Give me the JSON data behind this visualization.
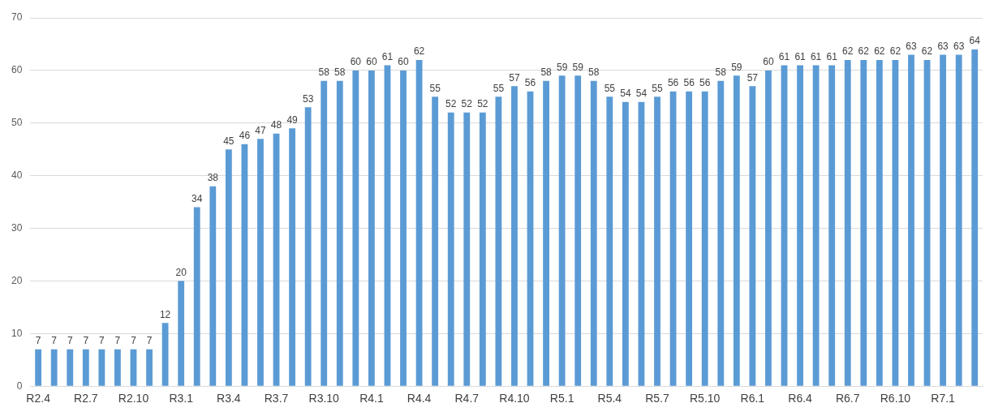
{
  "chart_data": {
    "type": "bar",
    "categories": [
      "R2.4",
      null,
      null,
      "R2.7",
      null,
      null,
      "R2.10",
      null,
      null,
      "R3.1",
      null,
      null,
      "R3.4",
      null,
      null,
      "R3.7",
      null,
      null,
      "R3.10",
      null,
      null,
      "R4.1",
      null,
      null,
      "R4.4",
      null,
      null,
      "R4.7",
      null,
      null,
      "R4.10",
      null,
      null,
      "R5.1",
      null,
      null,
      "R5.4",
      null,
      null,
      "R5.7",
      null,
      null,
      "R5.10",
      null,
      null,
      "R6.1",
      null,
      null,
      "R6.4",
      null,
      null,
      "R6.7",
      null,
      null,
      "R6.10",
      null,
      null,
      "R7.1",
      null,
      null
    ],
    "values": [
      7,
      7,
      7,
      7,
      7,
      7,
      7,
      7,
      12,
      20,
      34,
      38,
      45,
      46,
      47,
      48,
      49,
      53,
      58,
      58,
      60,
      60,
      61,
      60,
      62,
      55,
      52,
      52,
      52,
      55,
      57,
      56,
      58,
      59,
      59,
      58,
      55,
      54,
      54,
      55,
      56,
      56,
      56,
      58,
      59,
      57,
      60,
      61,
      61,
      61,
      61,
      62,
      62,
      62,
      62,
      63,
      62,
      63,
      63,
      64
    ],
    "color": "#5b9bd5",
    "ylim": [
      0,
      70
    ],
    "yticks": [
      0,
      10,
      20,
      30,
      40,
      50,
      60,
      70
    ],
    "grid": "y",
    "data_labels": true
  }
}
